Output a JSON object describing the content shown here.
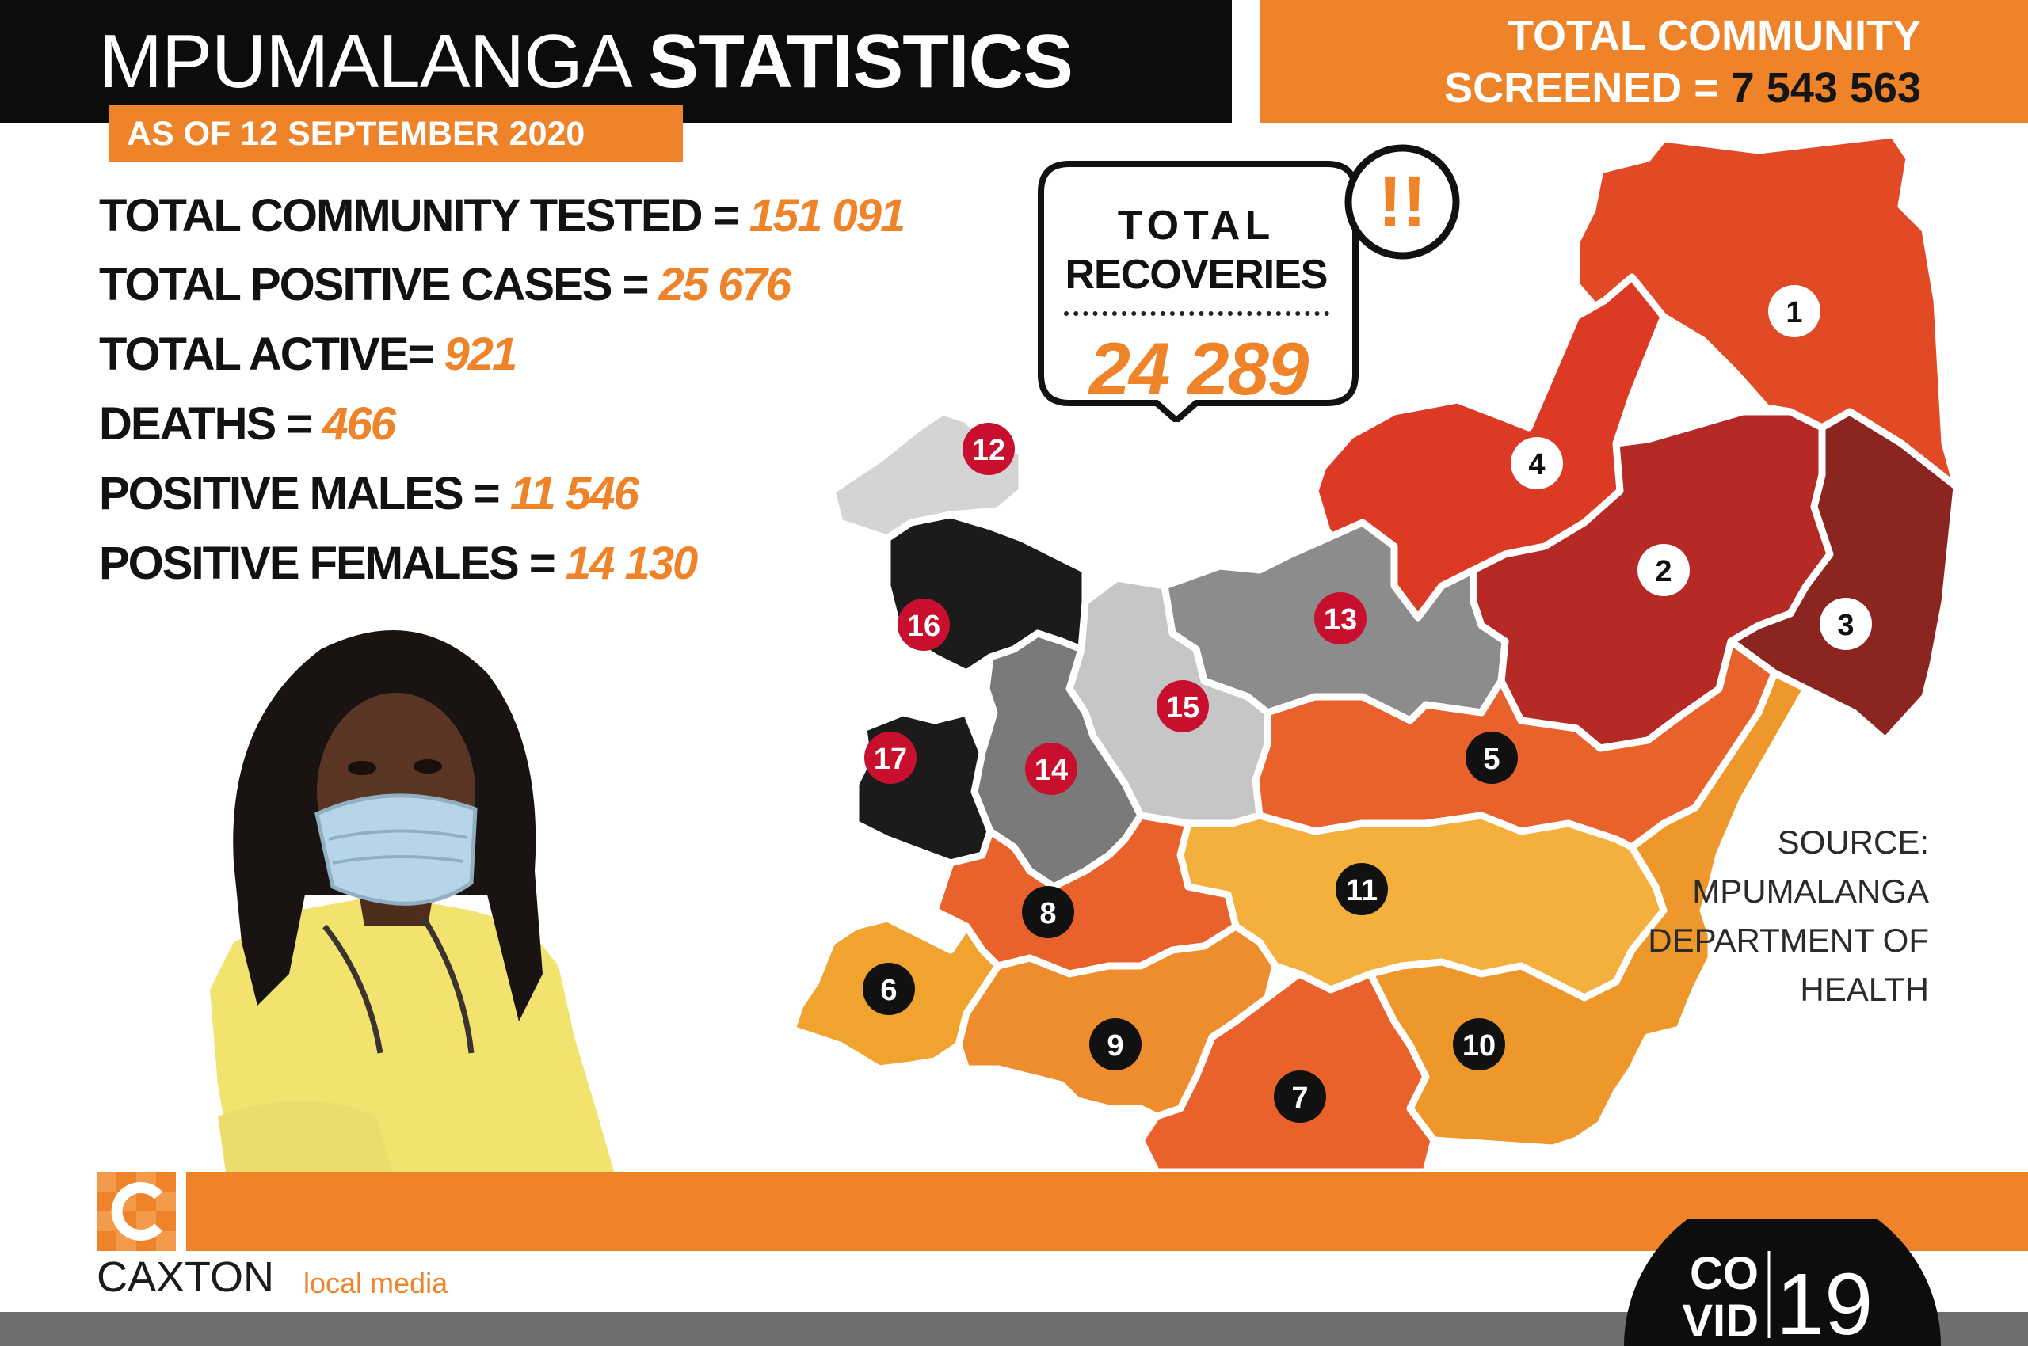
{
  "header": {
    "title_light": "MPUMALANGA",
    "title_bold": "STATISTICS",
    "date": "AS OF 12 SEPTEMBER 2020"
  },
  "screened": {
    "line1": "TOTAL  COMMUNITY",
    "line2_label": "SCREENED = ",
    "value": "7 543 563"
  },
  "stats": [
    {
      "label": "TOTAL COMMUNITY TESTED = ",
      "value": "151 091"
    },
    {
      "label": "TOTAL POSITIVE CASES = ",
      "value": "25 676"
    },
    {
      "label": "TOTAL ACTIVE= ",
      "value": "921"
    },
    {
      "label": "DEATHS = ",
      "value": "466"
    },
    {
      "label": "POSITIVE MALES = ",
      "value": "11 546"
    },
    {
      "label": "POSITIVE FEMALES = ",
      "value": "14 130"
    }
  ],
  "recoveries": {
    "line1": "TOTAL",
    "line2": "RECOVERIES",
    "value": "24 289",
    "alert": "!!"
  },
  "source": {
    "lines": [
      "SOURCE:",
      "MPUMALANGA",
      "DEPARTMENT OF",
      "HEALTH"
    ]
  },
  "map": {
    "regions": [
      {
        "id": "1",
        "color": "#e24a26"
      },
      {
        "id": "2",
        "color": "#b52a24"
      },
      {
        "id": "3",
        "color": "#8a2520"
      },
      {
        "id": "4",
        "color": "#dd3a26"
      },
      {
        "id": "5",
        "color": "#e9622b"
      },
      {
        "id": "6",
        "color": "#f0a32e"
      },
      {
        "id": "7",
        "color": "#e9622b"
      },
      {
        "id": "8",
        "color": "#e9622b"
      },
      {
        "id": "9",
        "color": "#ee8d2d"
      },
      {
        "id": "10",
        "color": "#ee982c"
      },
      {
        "id": "11",
        "color": "#f3b03c"
      },
      {
        "id": "12",
        "color": "#d4d4d4"
      },
      {
        "id": "13",
        "color": "#8c8c8c"
      },
      {
        "id": "14",
        "color": "#7a7a7a"
      },
      {
        "id": "15",
        "color": "#c6c6c6"
      },
      {
        "id": "16",
        "color": "#1b1b1b"
      },
      {
        "id": "17",
        "color": "#1b1b1b"
      }
    ]
  },
  "footer": {
    "brand": "CAXTON",
    "brand_sub": "local media",
    "covid_co": "CO",
    "covid_vid": "VID",
    "covid_num": "19"
  },
  "colors": {
    "accent": "#ee8329",
    "dark": "#0c0c0c",
    "marker_red": "#c8102e"
  }
}
